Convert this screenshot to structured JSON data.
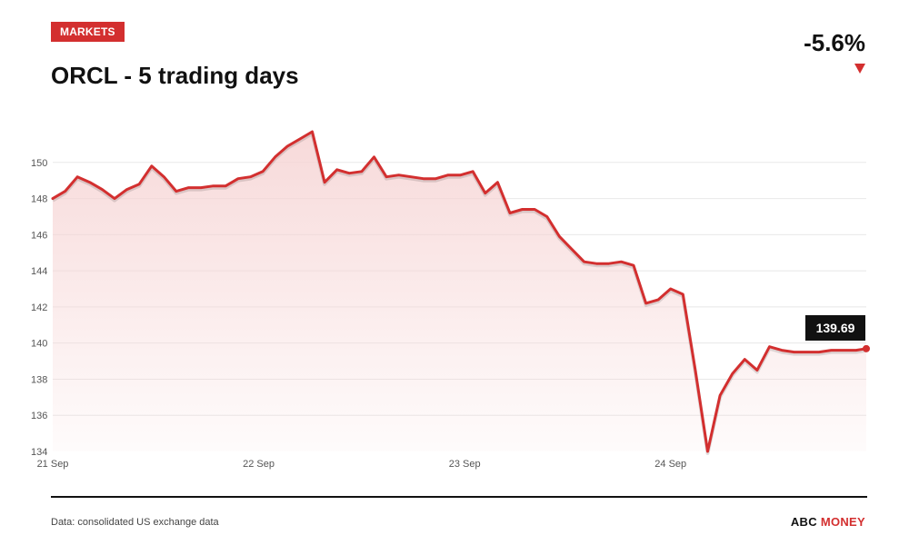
{
  "header": {
    "badge": "MARKETS",
    "title": "ORCL - 5 trading days",
    "change": "-5.6%"
  },
  "footer": {
    "source": "Data: consolidated US exchange data",
    "brand_part1": "ABC",
    "brand_part2": "MONEY"
  },
  "colors": {
    "accent": "#d32f2f",
    "area_top": "#f6d3d3",
    "grid": "#e8e8e8",
    "callout_bg": "#111111"
  },
  "chart_data": {
    "type": "area",
    "title": "ORCL - 5 trading days",
    "xlabel": "",
    "ylabel": "",
    "ylim": [
      134,
      151.7
    ],
    "xlim": [
      0,
      3.95
    ],
    "yticks": [
      134,
      136,
      138,
      140,
      142,
      144,
      146,
      148,
      150
    ],
    "xticks": [
      {
        "x": 0,
        "label": "21 Sep"
      },
      {
        "x": 1,
        "label": "22 Sep"
      },
      {
        "x": 2,
        "label": "23 Sep"
      },
      {
        "x": 3,
        "label": "24 Sep"
      }
    ],
    "grid": true,
    "last_value_label": "139.69",
    "series": [
      {
        "x": [
          0,
          0.06,
          0.12,
          0.18,
          0.24,
          0.3,
          0.36,
          0.42,
          0.48,
          0.54,
          0.6,
          0.66,
          0.72,
          0.78,
          0.84,
          0.9,
          0.96,
          1.02,
          1.08,
          1.14,
          1.2,
          1.26,
          1.32,
          1.38,
          1.44,
          1.5,
          1.56,
          1.62,
          1.68,
          1.74,
          1.8,
          1.86,
          1.92,
          1.98,
          2.04,
          2.1,
          2.16,
          2.22,
          2.28,
          2.34,
          2.4,
          2.46,
          2.52,
          2.58,
          2.64,
          2.7,
          2.76,
          2.82,
          2.88,
          2.94,
          3.0,
          3.06,
          3.12,
          3.18,
          3.24,
          3.3,
          3.36,
          3.42,
          3.48,
          3.54,
          3.6,
          3.66,
          3.72,
          3.78,
          3.84,
          3.9,
          3.95
        ],
        "values": [
          148.0,
          148.4,
          149.2,
          148.9,
          148.5,
          148.0,
          148.5,
          148.8,
          149.8,
          149.2,
          148.4,
          148.6,
          148.6,
          148.7,
          148.7,
          149.1,
          149.2,
          149.5,
          150.3,
          150.9,
          151.3,
          151.7,
          148.9,
          149.6,
          149.4,
          149.5,
          150.3,
          149.2,
          149.3,
          149.2,
          149.1,
          149.1,
          149.3,
          149.3,
          149.5,
          148.3,
          148.9,
          147.2,
          147.4,
          147.4,
          147.0,
          145.9,
          145.2,
          144.5,
          144.4,
          144.4,
          144.5,
          144.3,
          142.2,
          142.4,
          143.0,
          142.7,
          138.5,
          134.0,
          137.1,
          138.3,
          139.1,
          138.5,
          139.8,
          139.6,
          139.5,
          139.5,
          139.5,
          139.6,
          139.6,
          139.6,
          139.69
        ]
      }
    ]
  }
}
